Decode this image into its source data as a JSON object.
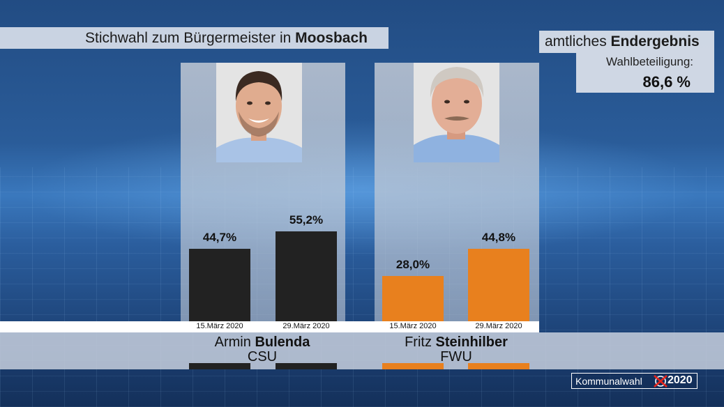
{
  "header": {
    "title_prefix": "Stichwahl zum Bürgermeister in ",
    "title_place": "Moosbach"
  },
  "result": {
    "prefix": "amtliches ",
    "highlight": "Endergebnis",
    "turnout_label": "Wahlbeteiligung:",
    "turnout_value": "86,6 %"
  },
  "badge": {
    "word": "Kommunalwahl",
    "year": "2020"
  },
  "colors": {
    "csu": "#222222",
    "fwu": "#e8801e"
  },
  "chart_data": {
    "type": "bar",
    "categories": [
      "15.März 2020",
      "29.März 2020"
    ],
    "ylim": [
      0,
      100
    ],
    "series": [
      {
        "name": "Armin Bulenda",
        "first_name": "Armin",
        "last_name": "Bulenda",
        "party": "CSU",
        "values": [
          44.7,
          55.2
        ],
        "labels": [
          "44,7%",
          "55,2%"
        ]
      },
      {
        "name": "Fritz Steinhilber",
        "first_name": "Fritz",
        "last_name": "Steinhilber",
        "party": "FWU",
        "values": [
          28.0,
          44.8
        ],
        "labels": [
          "28,0%",
          "44,8%"
        ]
      }
    ]
  }
}
